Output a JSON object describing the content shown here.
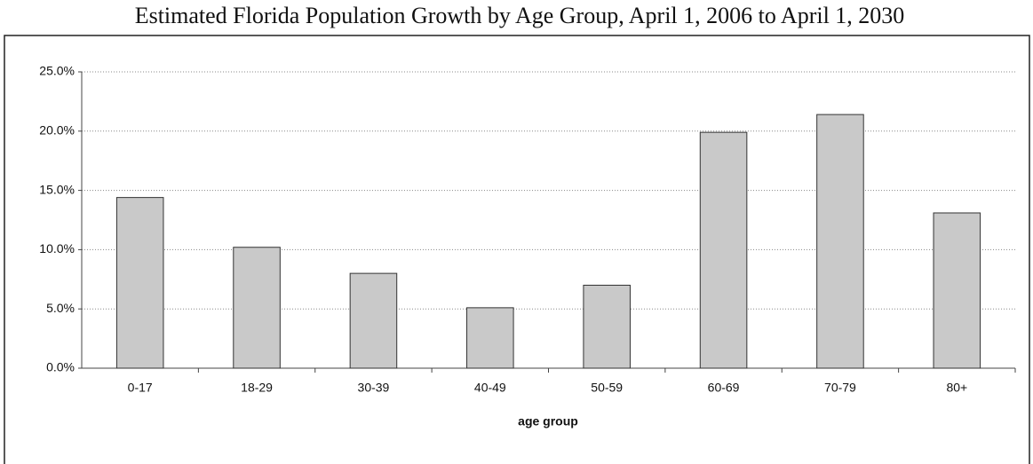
{
  "chart_data": {
    "type": "bar",
    "title": "Estimated Florida Population Growth by Age Group, April 1, 2006 to April 1, 2030",
    "x_label": "age group",
    "categories": [
      "0-17",
      "18-29",
      "30-39",
      "40-49",
      "50-59",
      "60-69",
      "70-79",
      "80+"
    ],
    "values": [
      14.4,
      10.2,
      8.0,
      5.1,
      7.0,
      19.9,
      21.4,
      13.1
    ],
    "color": "#c9c9c9",
    "ylim": [
      0,
      25
    ],
    "yticks": [
      {
        "value": 0,
        "label": "0.0%"
      },
      {
        "value": 5,
        "label": "5.0%"
      },
      {
        "value": 10,
        "label": "10.0%"
      },
      {
        "value": 15,
        "label": "15.0%"
      },
      {
        "value": 20,
        "label": "20.0%"
      },
      {
        "value": 25,
        "label": "25.0%"
      }
    ],
    "grid": true
  }
}
